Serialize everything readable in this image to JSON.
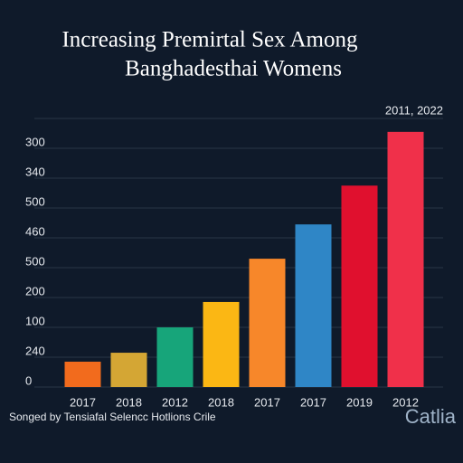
{
  "chart_data": {
    "type": "bar",
    "title": [
      "Increasing Premirtal Sex Among",
      "Banghadesthai Womens"
    ],
    "annotation": "2011, 2022",
    "categories": [
      "2017",
      "2018",
      "2012",
      "2018",
      "2017",
      "2017",
      "2019",
      "2012"
    ],
    "values": [
      0.85,
      1.15,
      2.0,
      2.85,
      4.3,
      5.45,
      6.75,
      8.55
    ],
    "colors": [
      "#f26b1d",
      "#d4a634",
      "#17a57a",
      "#fbb714",
      "#f7872a",
      "#2f86c6",
      "#e0102e",
      "#f0304a"
    ],
    "ylim": [
      0,
      9
    ],
    "yticks": [
      {
        "value": 0,
        "label": "0"
      },
      {
        "value": 1,
        "label": "240"
      },
      {
        "value": 2,
        "label": "100"
      },
      {
        "value": 3,
        "label": "200"
      },
      {
        "value": 4,
        "label": "500"
      },
      {
        "value": 5,
        "label": "460"
      },
      {
        "value": 6,
        "label": "500"
      },
      {
        "value": 7,
        "label": "340"
      },
      {
        "value": 8,
        "label": "300"
      }
    ],
    "grid": true,
    "source": "Songed by Tensiafal Selencc Hotlions Crile",
    "brand": "Catlia"
  }
}
